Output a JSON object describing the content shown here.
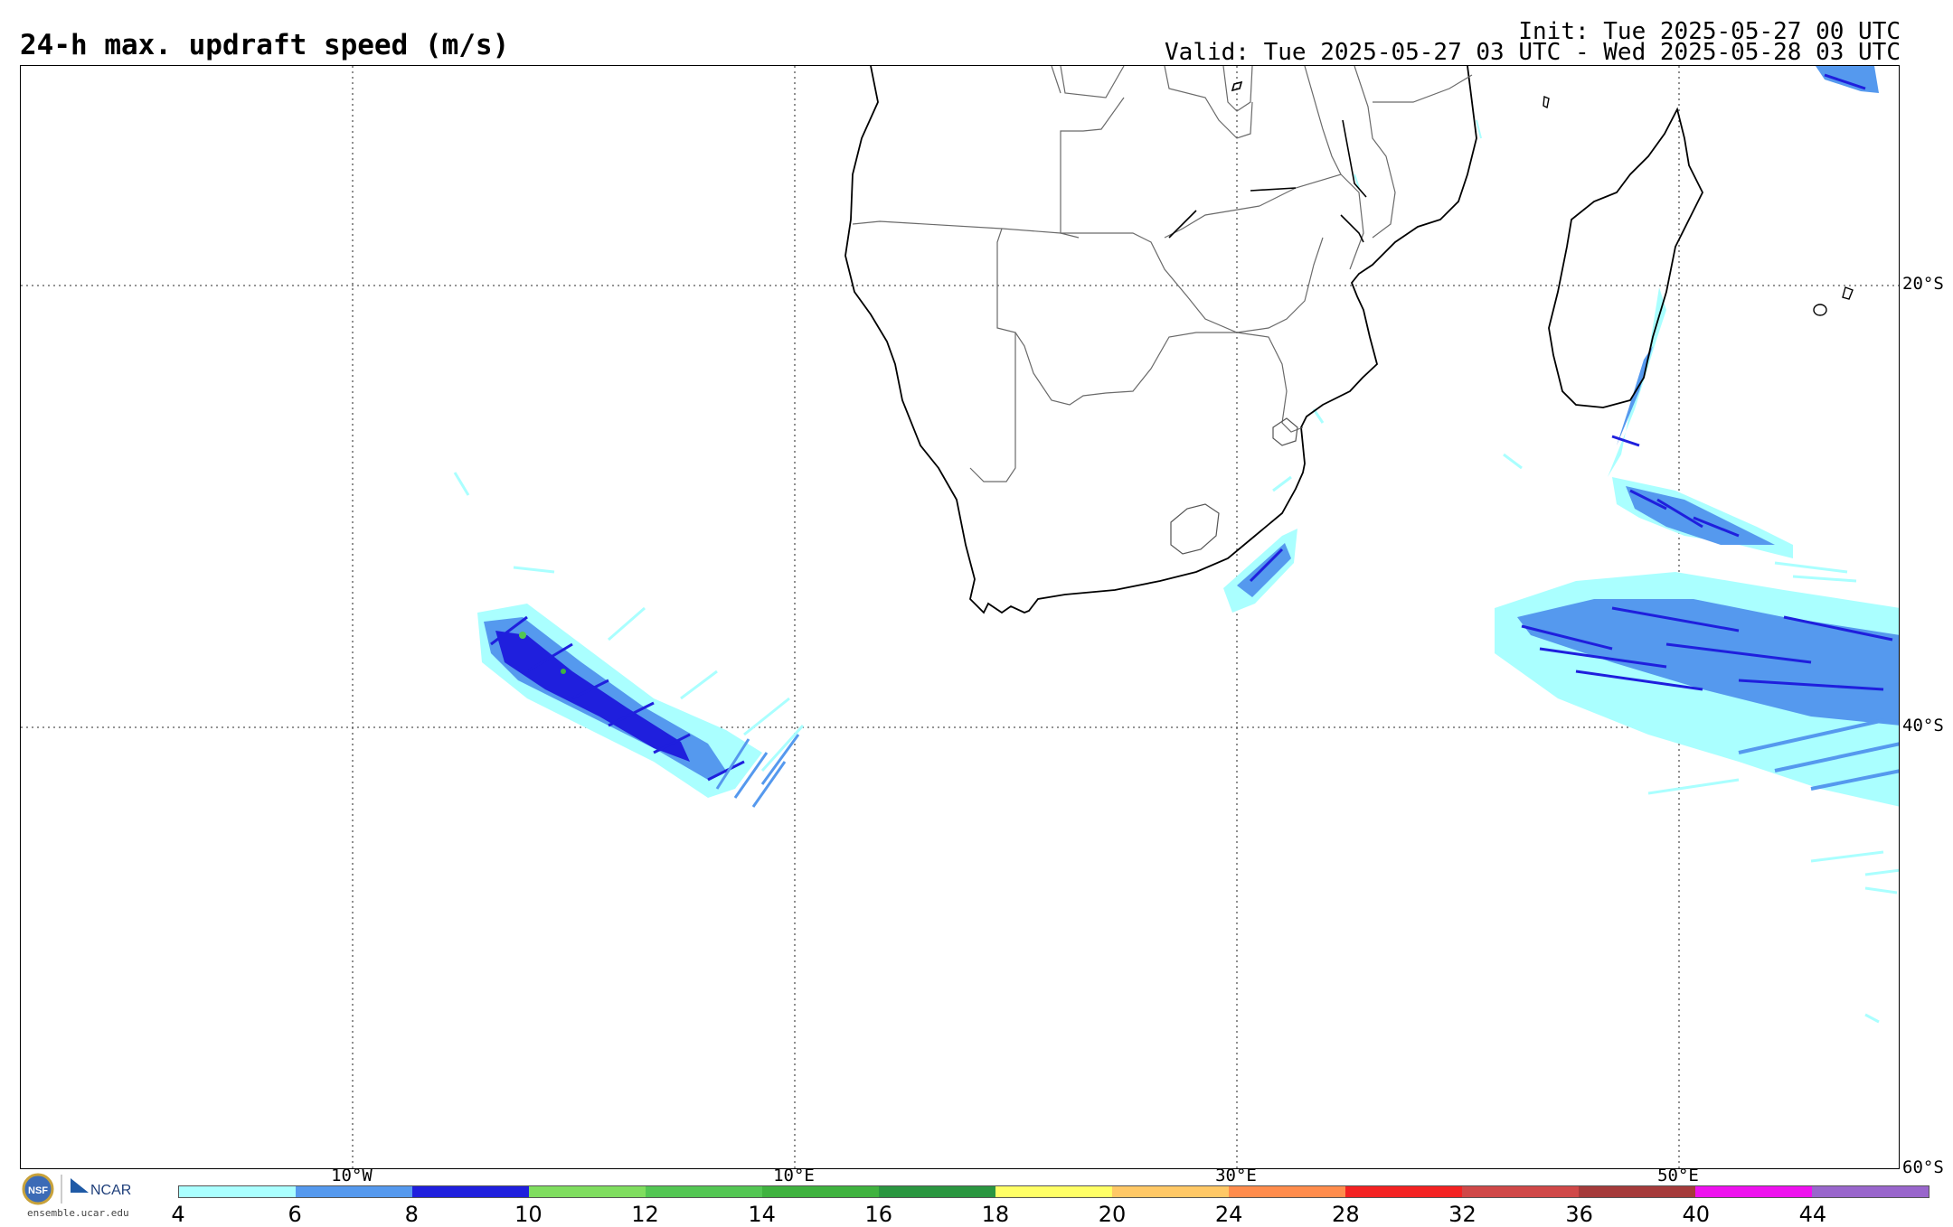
{
  "header": {
    "title": "24-h max. updraft speed (m/s)",
    "init": "Init: Tue 2025-05-27 00 UTC",
    "valid": "Valid: Tue 2025-05-27 03 UTC - Wed 2025-05-28 03 UTC"
  },
  "map": {
    "lat_labels": [
      "20°S",
      "40°S",
      "60°S"
    ],
    "lon_labels": [
      "10°W",
      "10°E",
      "30°E",
      "50°E"
    ]
  },
  "colorbar": {
    "ticks": [
      "4",
      "6",
      "8",
      "10",
      "12",
      "14",
      "16",
      "18",
      "20",
      "24",
      "28",
      "32",
      "36",
      "40",
      "44"
    ],
    "colors": [
      "#aaffff",
      "#5599ee",
      "#1f1fdd",
      "#7fdd5f",
      "#53c653",
      "#3fb23f",
      "#2a9640",
      "#ffff66",
      "#ffc866",
      "#ff8c4c",
      "#f32222",
      "#d04848",
      "#a53a3a",
      "#ee11ee",
      "#9966cc"
    ]
  },
  "logo": {
    "nsf_text": "NSF",
    "ncar_text": "NCAR",
    "url": "ensemble.ucar.edu"
  }
}
